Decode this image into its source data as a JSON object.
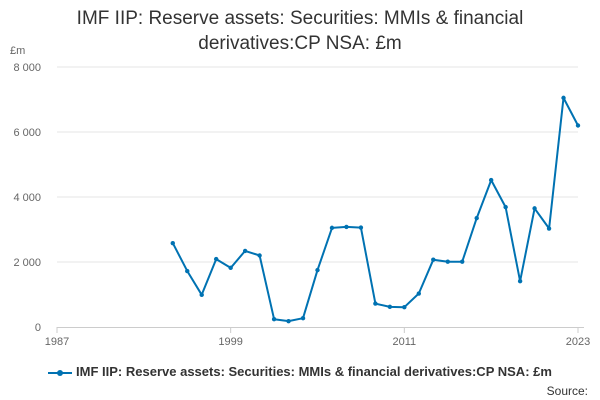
{
  "chart_data": {
    "type": "line",
    "title": "IMF IIP: Reserve assets: Securities: MMIs & financial derivatives:CP NSA: £m",
    "ylabel": "£m",
    "xlabel": "",
    "ylim": [
      0,
      8000
    ],
    "xlim": [
      1987,
      2023
    ],
    "yticks": [
      0,
      2000,
      4000,
      6000,
      8000
    ],
    "ytick_labels": [
      "0",
      "2 000",
      "4 000",
      "6 000",
      "8 000"
    ],
    "xticks": [
      1987,
      1999,
      2011,
      2023
    ],
    "xtick_labels": [
      "1987",
      "1999",
      "2011",
      "2023"
    ],
    "grid": "horizontal",
    "legend_position": "bottom",
    "series": [
      {
        "name": "IMF IIP: Reserve assets: Securities: MMIs & financial derivatives:CP NSA: £m",
        "color": "#0072b2",
        "x": [
          1995,
          1996,
          1997,
          1998,
          1999,
          2000,
          2001,
          2002,
          2003,
          2004,
          2005,
          2006,
          2007,
          2008,
          2009,
          2010,
          2011,
          2012,
          2013,
          2014,
          2015,
          2016,
          2017,
          2018,
          2019,
          2020,
          2021,
          2022,
          2023
        ],
        "values": [
          2580,
          1720,
          990,
          2090,
          1820,
          2340,
          2200,
          240,
          180,
          270,
          1750,
          3050,
          3080,
          3060,
          720,
          620,
          610,
          1030,
          2070,
          2010,
          2010,
          3350,
          4520,
          3690,
          1410,
          3650,
          3030,
          7050,
          6200
        ]
      }
    ],
    "source_label": "Source:"
  }
}
